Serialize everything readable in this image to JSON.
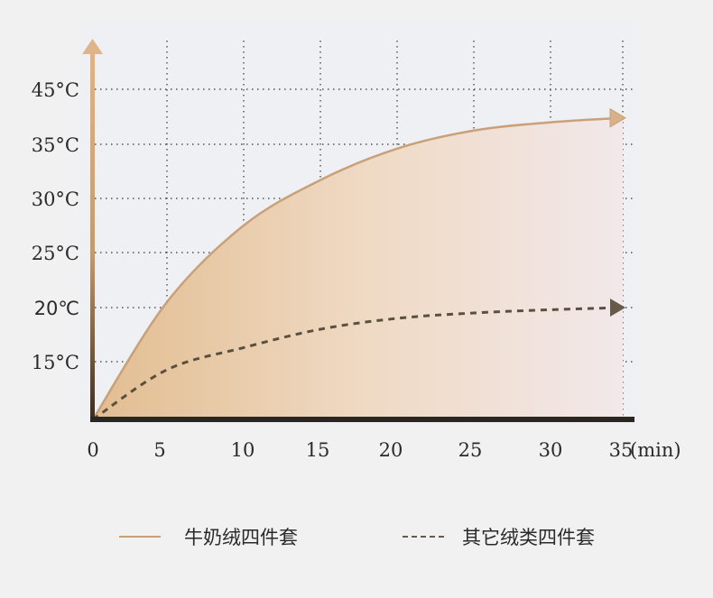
{
  "chart_data": {
    "type": "area",
    "title": "",
    "xlabel": "(min)",
    "ylabel": "",
    "x": [
      0,
      5,
      10,
      15,
      20,
      25,
      30,
      35
    ],
    "x_tick_labels": [
      "0",
      "5",
      "10",
      "15",
      "20",
      "25",
      "30",
      "35"
    ],
    "y_ticks": [
      45,
      35,
      30,
      25,
      20,
      15
    ],
    "y_tick_labels": [
      "45°C",
      "35°C",
      "30°C",
      "25°C",
      "20℃",
      "15°C"
    ],
    "highlight_tick": "20℃",
    "ylim": [
      10,
      45
    ],
    "grid": "dotted",
    "legend_position": "bottom",
    "series": [
      {
        "name": "牛奶绒四件套",
        "style": "solid",
        "color": "#c9a078",
        "fill": true,
        "values": [
          10,
          20.5,
          27.5,
          31.7,
          34.6,
          37.5,
          39,
          39.8
        ]
      },
      {
        "name": "其它绒类四件套",
        "style": "dashed",
        "color": "#5a5040",
        "fill": false,
        "values": [
          10,
          14.3,
          16.3,
          18,
          19,
          19.5,
          19.8,
          20
        ]
      }
    ]
  },
  "colors": {
    "highlight": "#d09a6e",
    "axis_dark": "#2b2622",
    "axis_light": "#e0b48a"
  }
}
